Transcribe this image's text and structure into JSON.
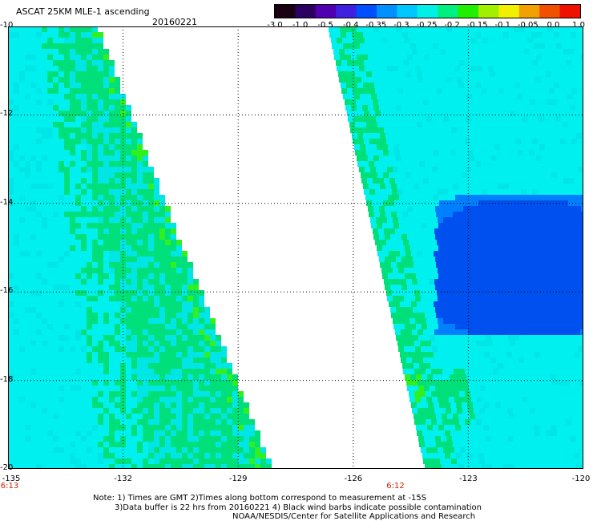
{
  "header": {
    "title": "ASCAT 25KM MLE-1 ascending",
    "date": "20160221"
  },
  "colorbar": {
    "labels": [
      "-3.0",
      "-1.0",
      "-0.5",
      "-0.4",
      "-0.35",
      "-0.3",
      "-0.25",
      "-0.2",
      "-0.15",
      "-0.1",
      "-0.05",
      "0.0",
      "1.0"
    ],
    "colors": [
      "#1a0010",
      "#2a0060",
      "#5000b0",
      "#4020e0",
      "#0050ff",
      "#0090ff",
      "#00c8ff",
      "#00f0e8",
      "#00f080",
      "#20f000",
      "#a0f000",
      "#f0f000",
      "#f0a000",
      "#f05000",
      "#f01000"
    ]
  },
  "map": {
    "lat_labels": [
      "-10",
      "-12",
      "-14",
      "-16",
      "-18",
      "-20"
    ],
    "lon_labels": [
      "-135",
      "-132",
      "-129",
      "-126",
      "-123",
      "-120"
    ],
    "time_labels": [
      {
        "text": "6:13",
        "lon": -135
      },
      {
        "text": "6:12",
        "lon": -124.9
      }
    ],
    "palette": {
      "cyan": "#00f0f0",
      "aqua": "#00e6e6",
      "green": "#00e07a",
      "lime": "#30f020",
      "blue": "#0080ff",
      "deep_blue": "#0050f0"
    }
  },
  "footer": {
    "line1": "Note: 1) Times are GMT 2)Times along bottom correspond to measurement at -15S",
    "line2": "3)Data buffer is 22 hrs from 20160221 4) Black wind barbs indicate possible contamination",
    "line3": "NOAA/NESDIS/Center for Satellite Applications and Research"
  }
}
